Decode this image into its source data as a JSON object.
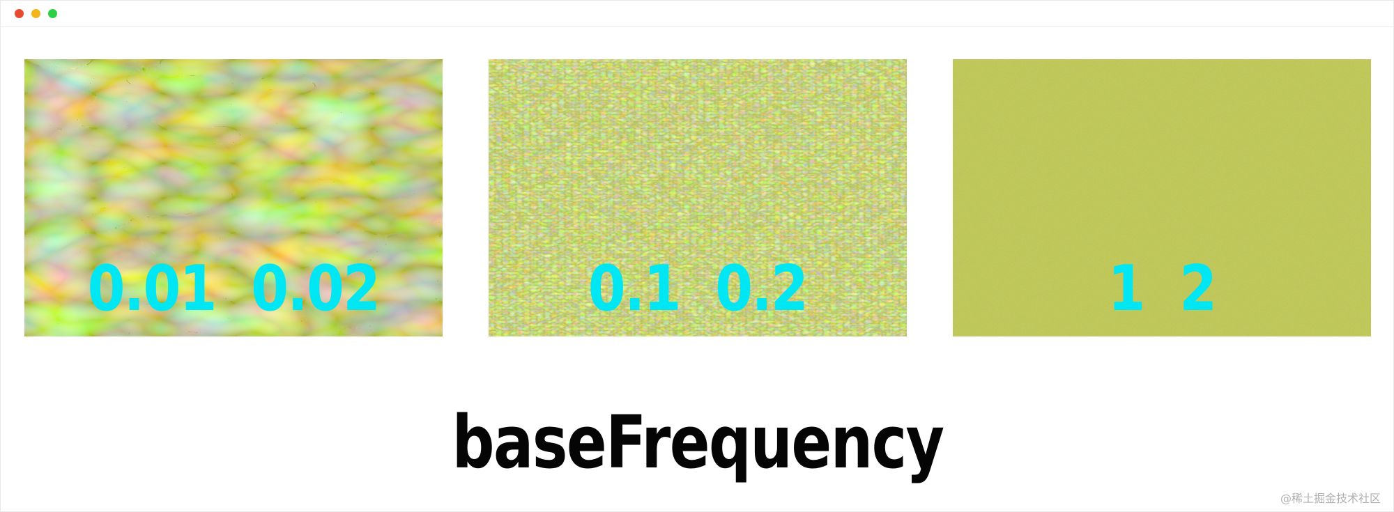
{
  "window": {
    "controls": [
      "close-icon",
      "minimize-icon",
      "maximize-icon"
    ],
    "control_colors": [
      "#e84a2f",
      "#f2b51b",
      "#2ccf45"
    ]
  },
  "panels": [
    {
      "label": "0.01  0.02"
    },
    {
      "label": "0.1  0.2"
    },
    {
      "label": "1  2"
    }
  ],
  "title": "baseFrequency",
  "watermark": "@稀土掘金技术社区",
  "colors": {
    "texture_base": "#889a15",
    "label": "#00e6f2",
    "title": "#050505"
  }
}
